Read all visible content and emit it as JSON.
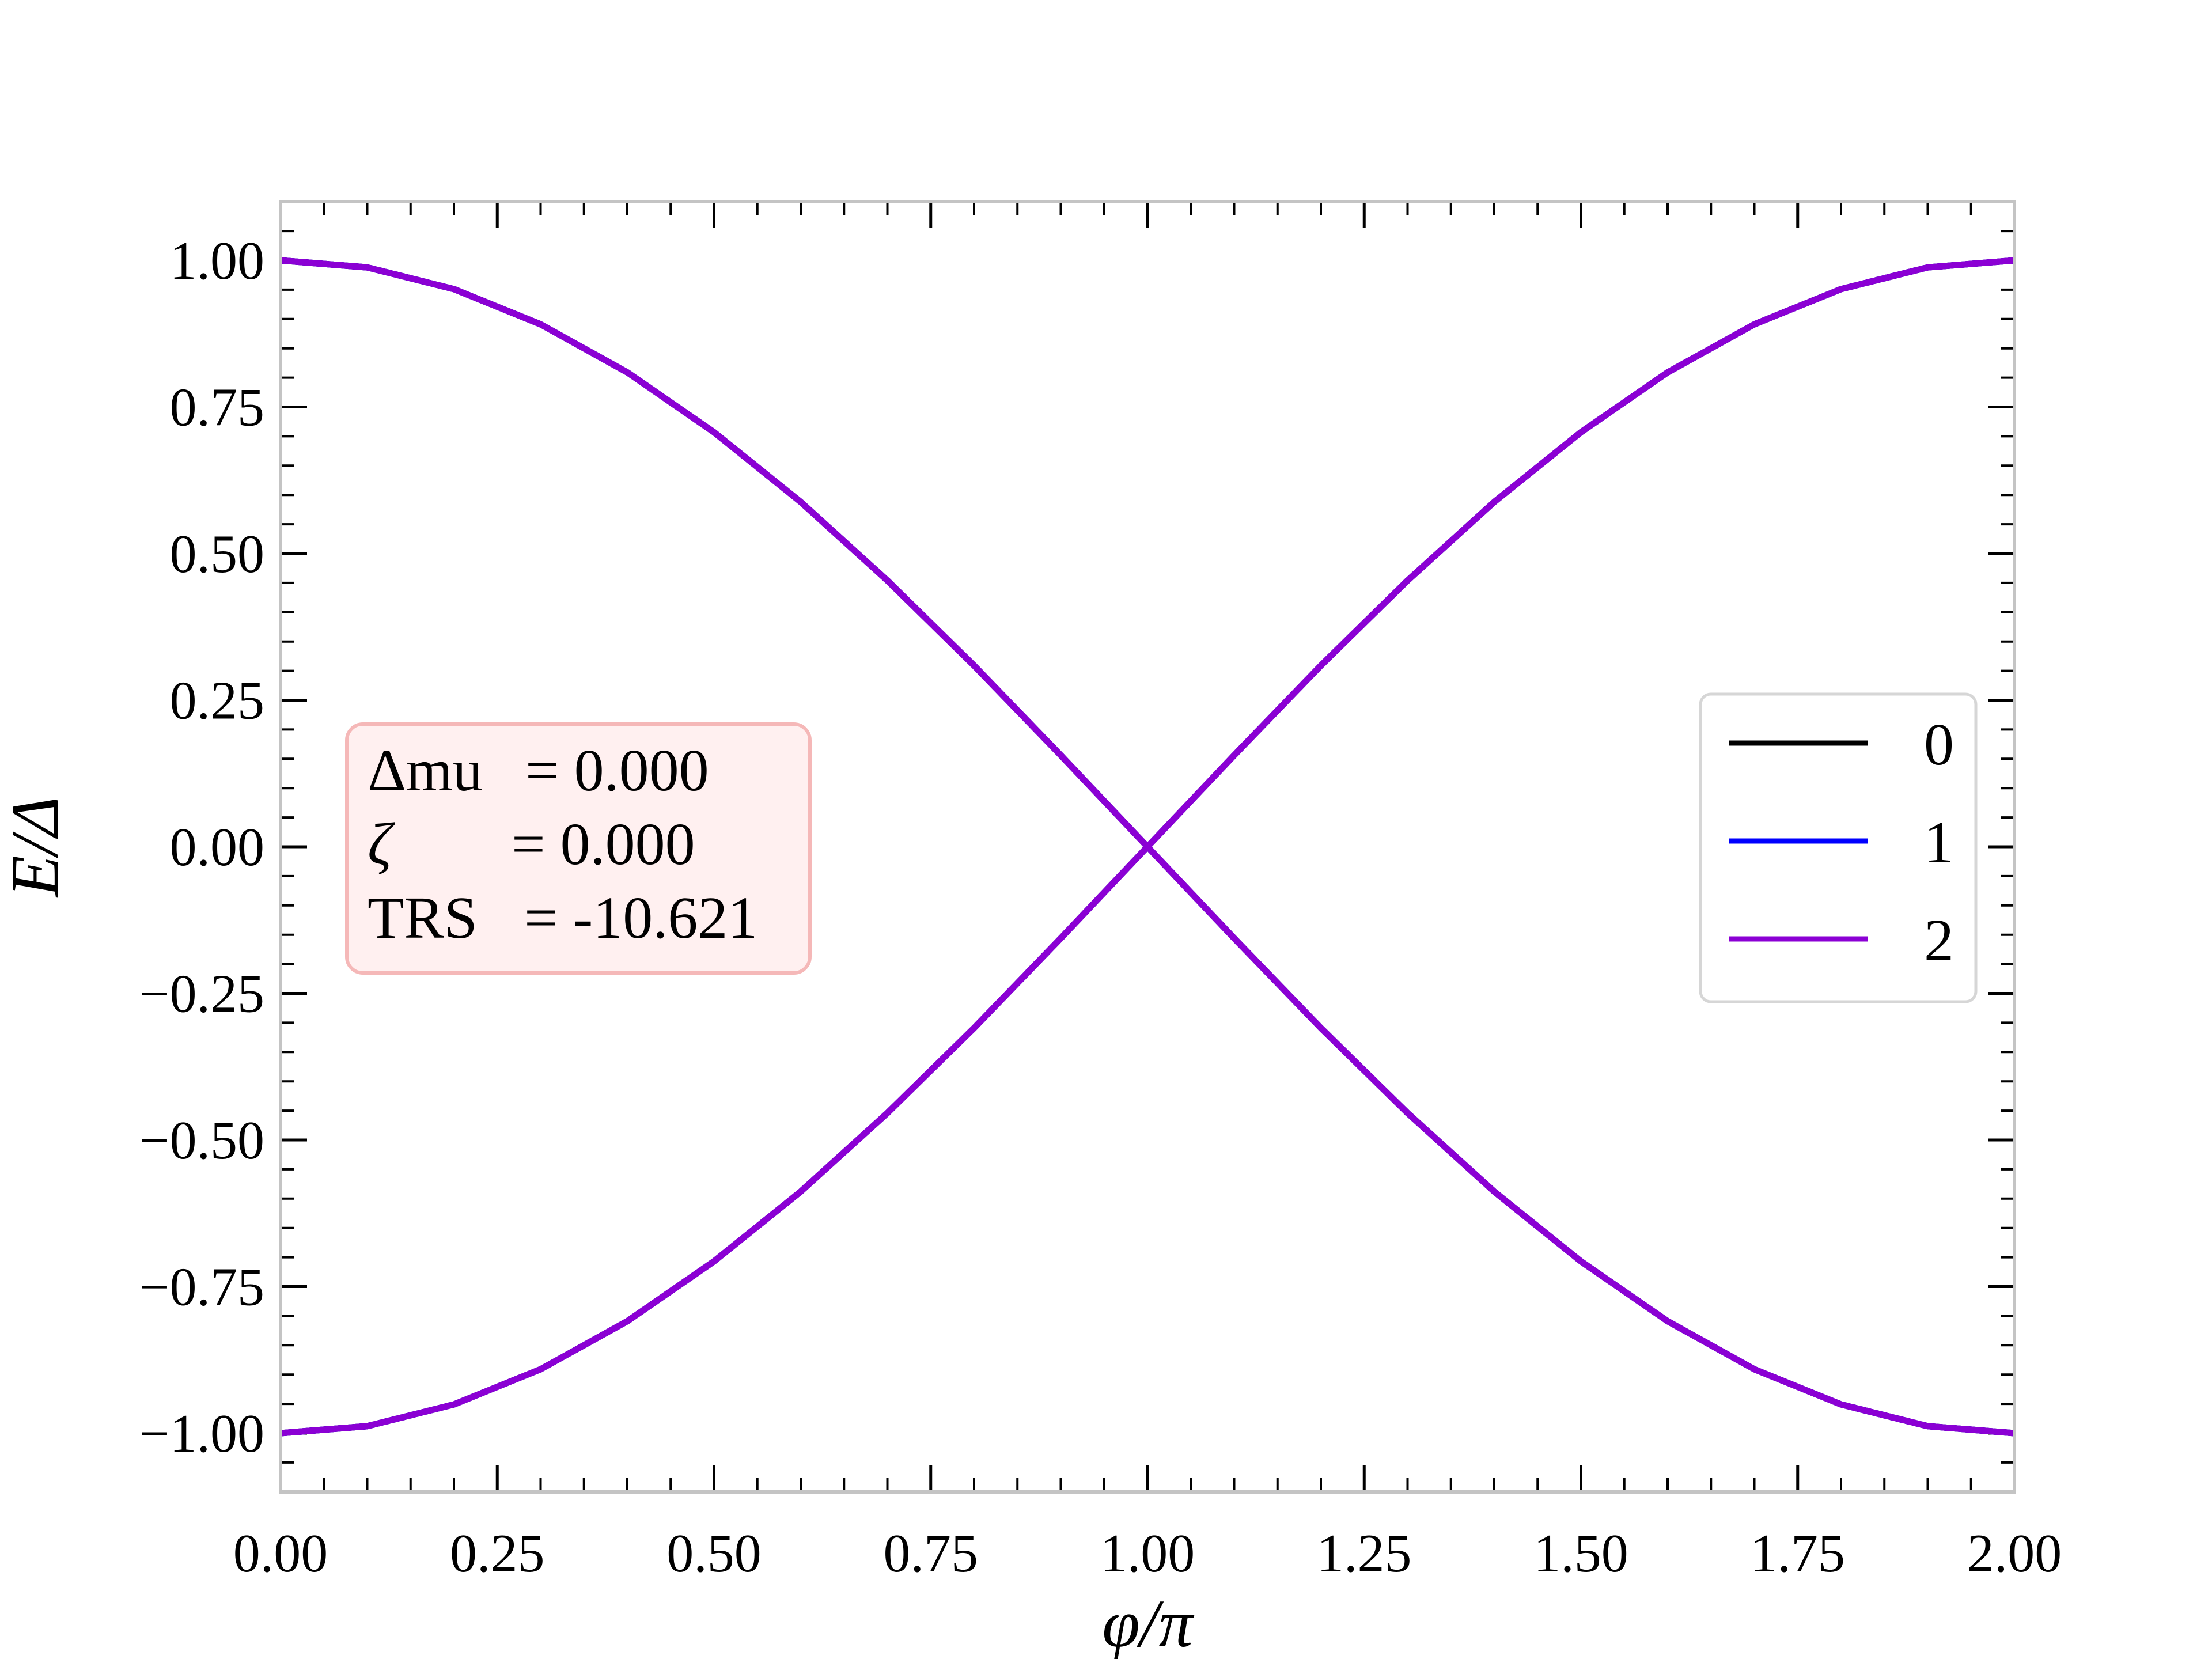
{
  "chart_data": {
    "type": "line",
    "xlabel": "φ/π",
    "ylabel": "E/Δ",
    "xlim": [
      0,
      2
    ],
    "ylim": [
      -1.1,
      1.1
    ],
    "xticks": [
      0,
      0.25,
      0.5,
      0.75,
      1,
      1.25,
      1.5,
      1.75,
      2
    ],
    "xtick_labels": [
      "0.00",
      "0.25",
      "0.50",
      "0.75",
      "1.00",
      "1.25",
      "1.50",
      "1.75",
      "2.00"
    ],
    "yticks": [
      1,
      0.75,
      0.5,
      0.25,
      0,
      -0.25,
      -0.5,
      -0.75,
      -1
    ],
    "ytick_labels": [
      "1.00",
      "0.75",
      "0.50",
      "0.25",
      "0.00",
      "−0.25",
      "−0.50",
      "−0.75",
      "−1.00"
    ],
    "x": [
      0,
      0.1,
      0.2,
      0.3,
      0.4,
      0.5,
      0.6,
      0.7,
      0.8,
      0.9,
      1.0,
      1.1,
      1.2,
      1.3,
      1.4,
      1.5,
      1.6,
      1.7,
      1.8,
      1.9,
      2.0
    ],
    "series": [
      {
        "name": "0",
        "color": "#000000",
        "branches": [
          [
            1.0,
            0.988,
            0.951,
            0.891,
            0.809,
            0.707,
            0.588,
            0.454,
            0.309,
            0.156,
            0.0,
            -0.156,
            -0.309,
            -0.454,
            -0.588,
            -0.707,
            -0.809,
            -0.891,
            -0.951,
            -0.988,
            -1.0
          ],
          [
            -1.0,
            -0.988,
            -0.951,
            -0.891,
            -0.809,
            -0.707,
            -0.588,
            -0.454,
            -0.309,
            -0.156,
            0.0,
            0.156,
            0.309,
            0.454,
            0.588,
            0.707,
            0.809,
            0.891,
            0.951,
            0.988,
            1.0
          ]
        ]
      },
      {
        "name": "1",
        "color": "#0000ff",
        "branches": [
          [
            1.0,
            0.988,
            0.951,
            0.891,
            0.809,
            0.707,
            0.588,
            0.454,
            0.309,
            0.156,
            0.0,
            -0.156,
            -0.309,
            -0.454,
            -0.588,
            -0.707,
            -0.809,
            -0.891,
            -0.951,
            -0.988,
            -1.0
          ],
          [
            -1.0,
            -0.988,
            -0.951,
            -0.891,
            -0.809,
            -0.707,
            -0.588,
            -0.454,
            -0.309,
            -0.156,
            0.0,
            0.156,
            0.309,
            0.454,
            0.588,
            0.707,
            0.809,
            0.891,
            0.951,
            0.988,
            1.0
          ]
        ]
      },
      {
        "name": "2",
        "color": "#8b00d4",
        "branches": [
          [
            1.0,
            0.988,
            0.951,
            0.891,
            0.809,
            0.707,
            0.588,
            0.454,
            0.309,
            0.156,
            0.0,
            -0.156,
            -0.309,
            -0.454,
            -0.588,
            -0.707,
            -0.809,
            -0.891,
            -0.951,
            -0.988,
            -1.0
          ],
          [
            -1.0,
            -0.988,
            -0.951,
            -0.891,
            -0.809,
            -0.707,
            -0.588,
            -0.454,
            -0.309,
            -0.156,
            0.0,
            0.156,
            0.309,
            0.454,
            0.588,
            0.707,
            0.809,
            0.891,
            0.951,
            0.988,
            1.0
          ]
        ]
      }
    ],
    "annotation": {
      "lines": [
        {
          "label": "Δmu",
          "value": "= 0.000"
        },
        {
          "label": "ζ",
          "value": "= 0.000"
        },
        {
          "label": "TRS",
          "value": "= -10.621"
        }
      ],
      "background": "#fff0f0",
      "border": "#f5b8b8"
    },
    "legend": {
      "placement": "right",
      "entries": [
        "0",
        "1",
        "2"
      ]
    },
    "grid": false
  }
}
